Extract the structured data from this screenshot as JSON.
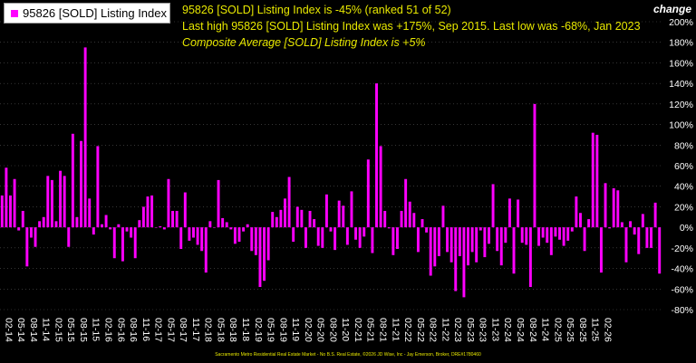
{
  "legend": {
    "label": "95826 [SOLD] Listing Index",
    "color": "#ff00ff"
  },
  "info": {
    "line1": "95826 [SOLD] Listing Index is -45% (ranked 51 of 52)",
    "line2": "Last high 95826 [SOLD] Listing Index was +175%, Sep 2015. Last low was -68%, Jan 2023",
    "line3": "Composite Average [SOLD] Listing Index is +5%"
  },
  "y_axis_title": "change",
  "footer": "Sacramento Metro Residential Real Estate Market - No B.S. Real Estate, ©2026 JD Wise, Inc - Jay Emerson, Broker, DRE#1780460",
  "colors": {
    "bar": "#ff00ff",
    "text": "#e8e800",
    "axis_text": "#ffffff",
    "grid": "#555555"
  },
  "chart_data": {
    "type": "bar",
    "series": [
      {
        "name": "95826 [SOLD] Listing Index",
        "values": [
          31,
          58,
          31,
          47,
          -3,
          16,
          -38,
          -10,
          -19,
          6,
          10,
          50,
          46,
          6,
          55,
          50,
          -19,
          91,
          10,
          84,
          175,
          28,
          -7,
          79,
          3,
          12,
          -2,
          -30,
          3,
          -33,
          -4,
          -10,
          -30,
          7,
          20,
          30,
          31,
          0,
          1,
          -2,
          47,
          16,
          16,
          -21,
          34,
          -13,
          -10,
          -17,
          -23,
          -44,
          6,
          0,
          46,
          9,
          5,
          -2,
          -16,
          -14,
          -4,
          3,
          -23,
          -27,
          -58,
          -52,
          -32,
          15,
          10,
          17,
          28,
          49,
          -14,
          20,
          17,
          -20,
          16,
          8,
          -18,
          -20,
          32,
          -4,
          -22,
          26,
          21,
          -17,
          35,
          -12,
          -20,
          -9,
          66,
          -25,
          140,
          79,
          16,
          -1,
          -27,
          -21,
          16,
          47,
          25,
          14,
          -24,
          8,
          -5,
          -47,
          -38,
          -28,
          21,
          -24,
          -34,
          -62,
          -28,
          -68,
          -37,
          -24,
          -34,
          -3,
          -29,
          -16,
          42,
          -23,
          -37,
          -15,
          28,
          -45,
          27,
          -15,
          -17,
          -58,
          120,
          -18,
          -10,
          -15,
          -27,
          -9,
          -12,
          -18,
          -13,
          -4,
          30,
          14,
          -23,
          8,
          92,
          90,
          -44,
          43,
          -1,
          38,
          36,
          5,
          -34,
          6,
          -7,
          -26,
          13,
          -20,
          -20,
          24,
          -45
        ]
      }
    ],
    "x_tick_labels": [
      "02-14",
      "05-14",
      "08-14",
      "11-14",
      "02-15",
      "05-15",
      "08-15",
      "11-15",
      "02-16",
      "05-16",
      "08-16",
      "11-16",
      "02-17",
      "05-17",
      "08-17",
      "11-17",
      "02-18",
      "05-18",
      "08-18",
      "11-18",
      "02-19",
      "05-19",
      "08-19",
      "11-19",
      "02-20",
      "05-20",
      "08-20",
      "11-20",
      "02-21",
      "05-21",
      "08-21",
      "11-21",
      "02-22",
      "05-22",
      "08-22",
      "11-22",
      "02-23",
      "05-23",
      "08-23",
      "11-23",
      "02-24",
      "05-24",
      "08-24",
      "11-24",
      "02-25",
      "05-25",
      "08-25",
      "11-25",
      "02-26"
    ],
    "y_tick_labels": [
      "200%",
      "180%",
      "160%",
      "140%",
      "120%",
      "100%",
      "80%",
      "60%",
      "40%",
      "20%",
      "0%",
      "-20%",
      "-40%",
      "-60%",
      "-80%"
    ],
    "y_ticks": [
      200,
      180,
      160,
      140,
      120,
      100,
      80,
      60,
      40,
      20,
      0,
      -20,
      -40,
      -60,
      -80
    ],
    "ylim": [
      -80,
      200
    ],
    "grid": true,
    "legend_position": "top-left"
  }
}
